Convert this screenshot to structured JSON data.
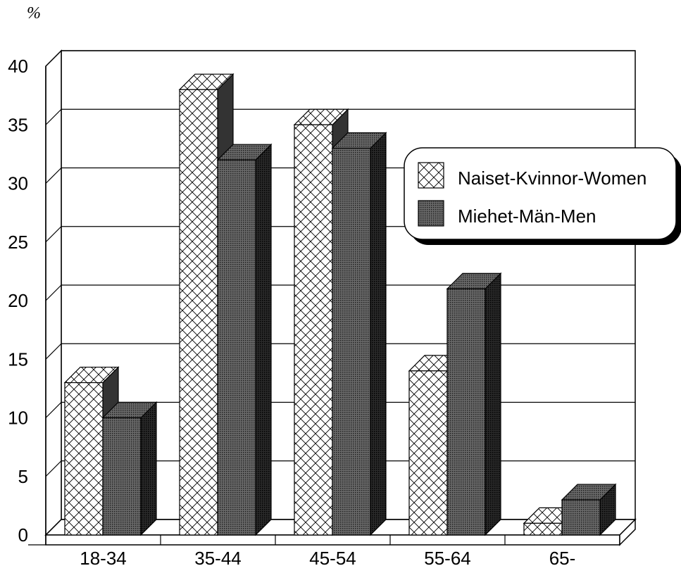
{
  "chart_data": {
    "type": "bar",
    "unit_label": "%",
    "categories": [
      "18-34",
      "35-44",
      "45-54",
      "55-64",
      "65-"
    ],
    "series": [
      {
        "name": "Naiset-Kvinnor-Women",
        "values": [
          13,
          38,
          35,
          14,
          1
        ],
        "pattern": "crosshatch",
        "color": "#ffffff"
      },
      {
        "name": "Miehet-Män-Men",
        "values": [
          10,
          32,
          33,
          21,
          3
        ],
        "pattern": "dots",
        "color": "#555555"
      }
    ],
    "ylim": [
      0,
      40
    ],
    "yticks": [
      0,
      5,
      10,
      15,
      20,
      25,
      30,
      35,
      40
    ],
    "grid": true,
    "legend_position": "right",
    "style": "3d"
  }
}
